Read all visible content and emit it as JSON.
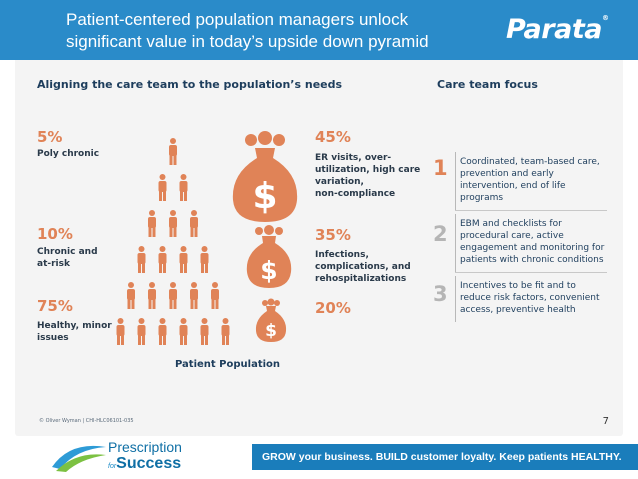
{
  "header": {
    "title_line1": "Patient-centered population managers unlock",
    "title_line2": "significant value in today’s upside down pyramid",
    "logo": "Parata",
    "logo_mark": "®"
  },
  "slide": {
    "left_heading": "Aligning the care team to the population’s needs",
    "right_heading": "Care team focus",
    "population": [
      {
        "percent": "5%",
        "label_lines": [
          "Poly chronic"
        ]
      },
      {
        "percent": "10%",
        "label_lines": [
          "Chronic and",
          "at-risk"
        ]
      },
      {
        "percent": "75%",
        "label_lines": [
          "Healthy, minor",
          "issues"
        ]
      }
    ],
    "population_label": "Patient Population",
    "cost": [
      {
        "percent": "45%",
        "label_lines": [
          "ER visits, over-",
          "utilization, high care",
          "variation,",
          "non-compliance"
        ]
      },
      {
        "percent": "35%",
        "label_lines": [
          "Infections,",
          "complications, and",
          "rehospitalizations"
        ]
      },
      {
        "percent": "20%",
        "label_lines": []
      }
    ],
    "tiers": [
      {
        "num": "1",
        "lines": [
          "Coordinated, team-based care,",
          "prevention and early",
          "intervention, end of life",
          "programs"
        ]
      },
      {
        "num": "2",
        "lines": [
          "EBM and checklists for",
          "procedural care, active",
          "engagement and monitoring for",
          "patients with chronic conditions"
        ]
      },
      {
        "num": "3",
        "lines": [
          "Incentives to be fit and to",
          "reduce risk factors, convenient",
          "access, preventive health"
        ]
      }
    ],
    "copyright": "© Oliver Wyman | CHI-HLC06101-035",
    "page_number": "7",
    "money_symbol": "$"
  },
  "footer": {
    "brand_line1": "Prescription",
    "brand_for": "for",
    "brand_success": "Success",
    "tagline": "GROW your business. BUILD customer loyalty. Keep patients HEALTHY."
  },
  "colors": {
    "banner": "#2a8bc9",
    "accent": "#e08357",
    "navy": "#1d3d5c",
    "footer_bar": "#1a7dbb"
  },
  "icons": [
    "person-icon",
    "money-bag-icon",
    "prescription-swoosh-icon"
  ]
}
